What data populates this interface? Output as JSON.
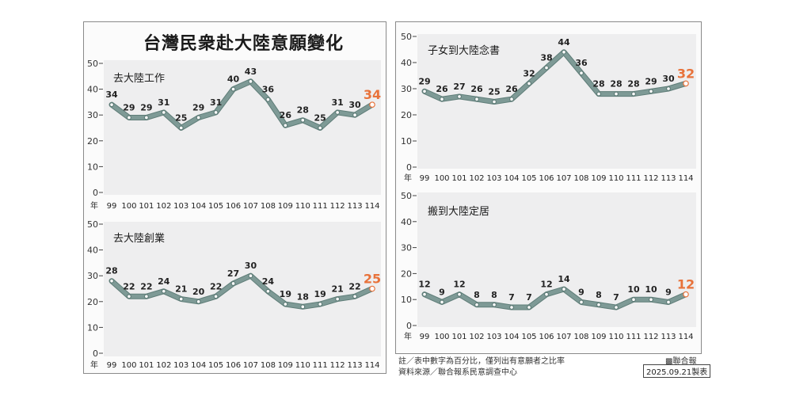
{
  "main_title": "台灣民衆赴大陸意願變化",
  "chart_data": [
    {
      "id": "c1",
      "type": "line",
      "title": "去大陸工作",
      "categories": [
        "99",
        "100",
        "101",
        "102",
        "103",
        "104",
        "105",
        "106",
        "107",
        "108",
        "109",
        "110",
        "111",
        "112",
        "113",
        "114"
      ],
      "values": [
        34,
        29,
        29,
        31,
        25,
        29,
        31,
        40,
        43,
        36,
        26,
        28,
        25,
        31,
        30,
        34
      ],
      "ylim": [
        0,
        50
      ],
      "yticks": [
        "0",
        "10",
        "20",
        "30",
        "40",
        "50"
      ],
      "xlabel": "年",
      "highlight_last": "34"
    },
    {
      "id": "c2",
      "type": "line",
      "title": "去大陸創業",
      "categories": [
        "99",
        "100",
        "101",
        "102",
        "103",
        "104",
        "105",
        "106",
        "107",
        "108",
        "109",
        "110",
        "111",
        "112",
        "113",
        "114"
      ],
      "values": [
        28,
        22,
        22,
        24,
        21,
        20,
        22,
        27,
        30,
        24,
        19,
        18,
        19,
        21,
        22,
        25
      ],
      "ylim": [
        0,
        50
      ],
      "yticks": [
        "0",
        "10",
        "20",
        "30",
        "40",
        "50"
      ],
      "xlabel": "年",
      "highlight_last": "25"
    },
    {
      "id": "c3",
      "type": "line",
      "title": "子女到大陸念書",
      "categories": [
        "99",
        "100",
        "101",
        "102",
        "103",
        "104",
        "105",
        "106",
        "107",
        "108",
        "109",
        "110",
        "111",
        "112",
        "113",
        "114"
      ],
      "values": [
        29,
        26,
        27,
        26,
        25,
        26,
        32,
        38,
        44,
        36,
        28,
        28,
        28,
        29,
        30,
        32
      ],
      "ylim": [
        0,
        50
      ],
      "yticks": [
        "0",
        "10",
        "20",
        "30",
        "40",
        "50"
      ],
      "xlabel": "年",
      "highlight_last": "32"
    },
    {
      "id": "c4",
      "type": "line",
      "title": "搬到大陸定居",
      "categories": [
        "99",
        "100",
        "101",
        "102",
        "103",
        "104",
        "105",
        "106",
        "107",
        "108",
        "109",
        "110",
        "111",
        "112",
        "113",
        "114"
      ],
      "values": [
        12,
        9,
        12,
        8,
        8,
        7,
        7,
        12,
        14,
        9,
        8,
        7,
        10,
        10,
        9,
        12
      ],
      "ylim": [
        0,
        50
      ],
      "yticks": [
        "0",
        "10",
        "20",
        "30",
        "40",
        "50"
      ],
      "xlabel": "年",
      "highlight_last": "12"
    }
  ],
  "footer": {
    "note": "註／表中數字為百分比，僅列出有意願者之比率",
    "source": "資料來源／聯合報系民意調查中心",
    "credit": "▩聯合報",
    "date_box": "2025.09.21製表"
  },
  "colors": {
    "line": "#7e9a96",
    "line_outline": "#5f7d78",
    "marker_fill": "#ffffff",
    "highlight": "#e8723a",
    "gridline": "#b9b9b9"
  }
}
